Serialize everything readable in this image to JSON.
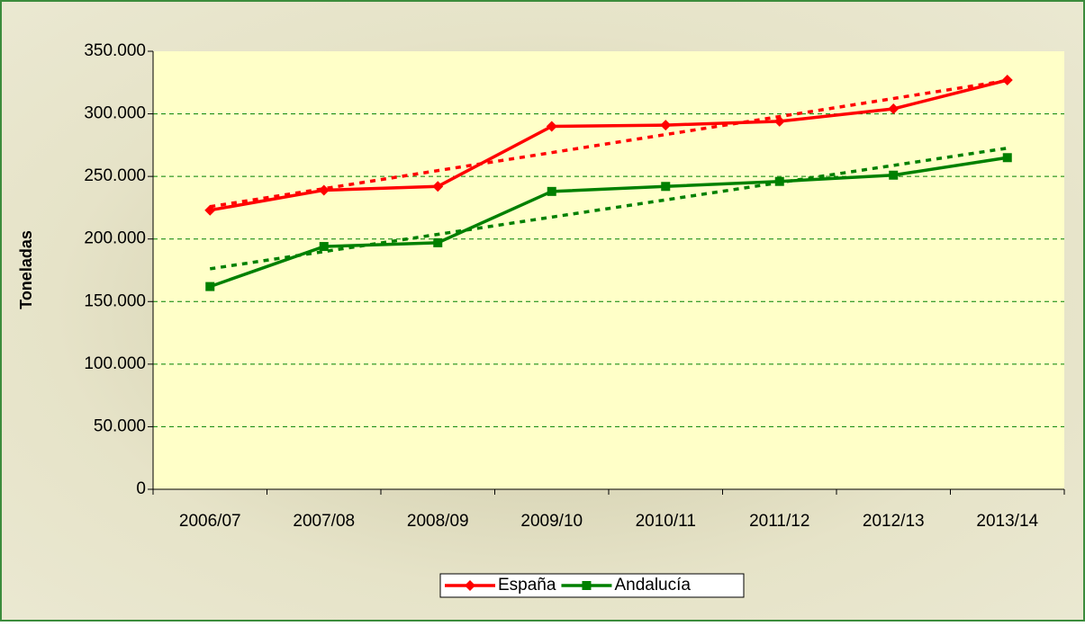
{
  "chart_data": {
    "type": "line",
    "y_label": "Toneladas",
    "categories": [
      "2006/07",
      "2007/08",
      "2008/09",
      "2009/10",
      "2010/11",
      "2011/12",
      "2012/13",
      "2013/14"
    ],
    "series": [
      {
        "name": "España",
        "color": "#ff0000",
        "marker": "diamond",
        "values": [
          223000,
          239000,
          242000,
          290000,
          291000,
          294000,
          304000,
          327000
        ]
      },
      {
        "name": "Andalucía",
        "color": "#008000",
        "marker": "square",
        "values": [
          162000,
          194000,
          197000,
          238000,
          242000,
          246000,
          251000,
          265000
        ]
      }
    ],
    "trendline": true,
    "ylim": [
      0,
      350000
    ],
    "yticks": [
      0,
      {
        "value": 50000,
        "label": "50.000"
      },
      {
        "value": 100000,
        "label": "100.000"
      },
      {
        "value": 150000,
        "label": "150.000"
      },
      {
        "value": 200000,
        "label": "200.000"
      },
      {
        "value": 250000,
        "label": "250.000"
      },
      {
        "value": 300000,
        "label": "300.000"
      },
      {
        "value": 350000,
        "label": "350.000"
      }
    ],
    "grid": true,
    "legend": "bottom"
  }
}
